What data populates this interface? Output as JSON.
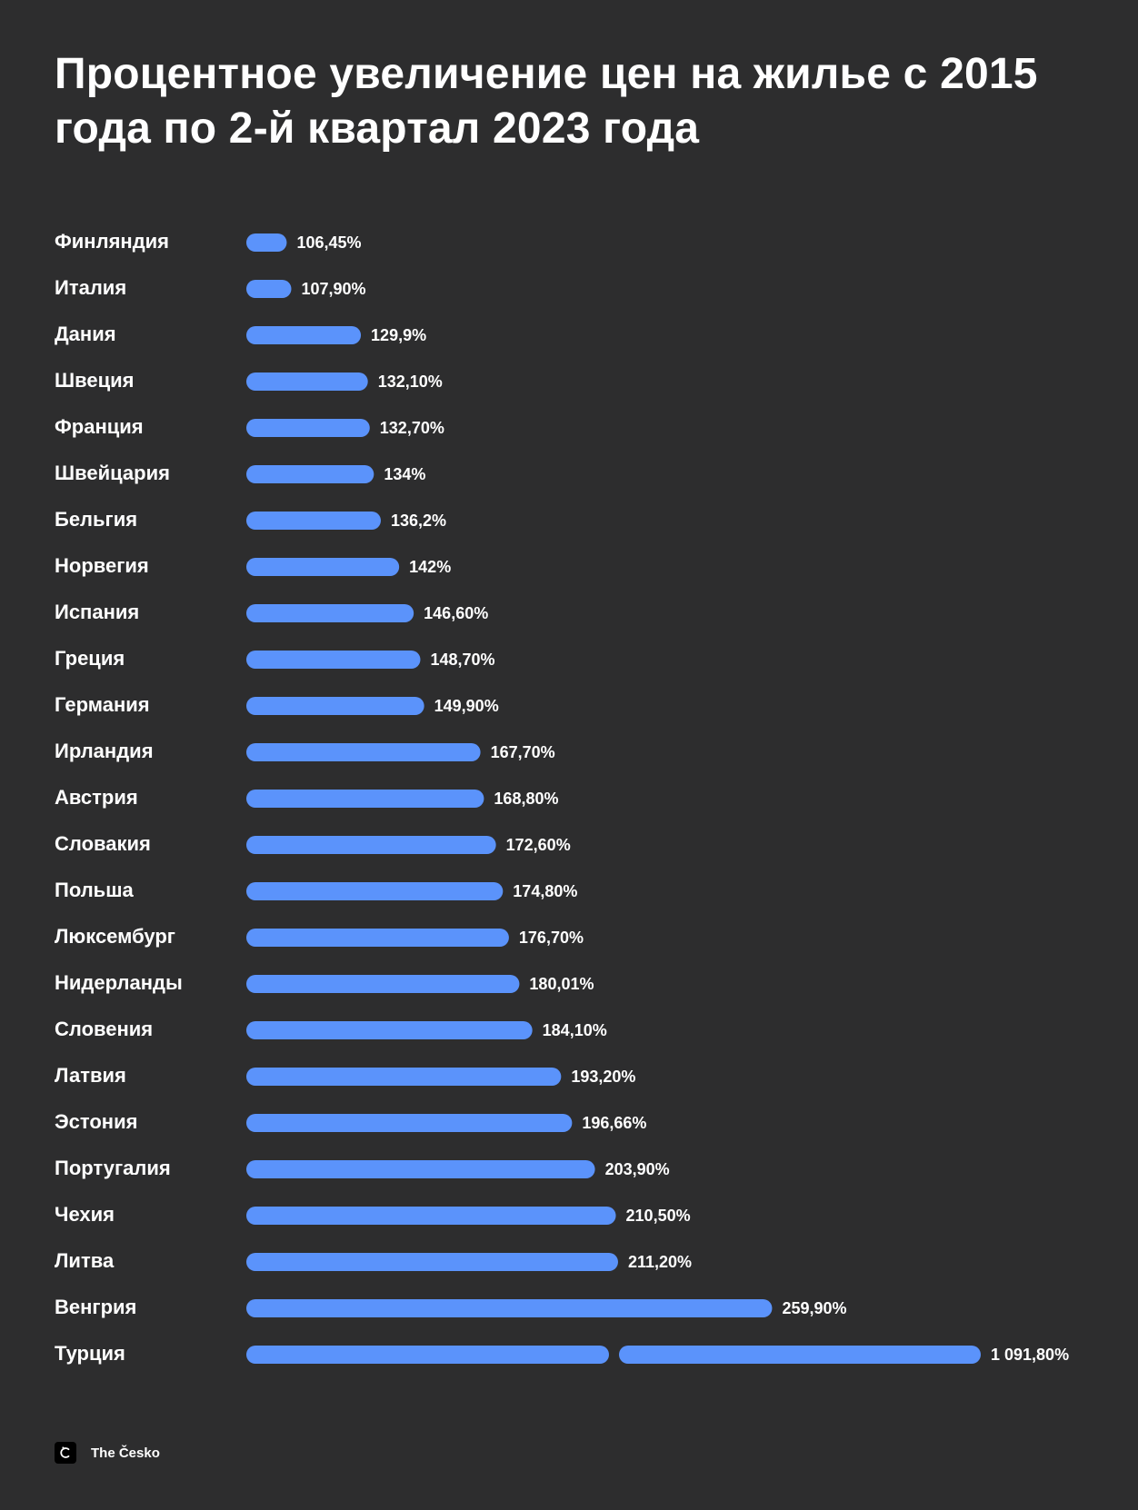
{
  "title": "Процентное увеличение цен на жилье с 2015 года по 2-й квартал 2023 года",
  "brand": {
    "name": "The Česko",
    "logo_icon": "c-logo-icon"
  },
  "colors": {
    "background": "#2d2d2e",
    "bar": "#5b93fb",
    "text": "#ffffff"
  },
  "chart_data": {
    "type": "bar",
    "orientation": "horizontal",
    "title": "Процентное увеличение цен на жилье с 2015 года по 2-й квартал 2023 года",
    "xlabel": "",
    "ylabel": "",
    "grid": false,
    "axis_break_on_last_bar": true,
    "categories": [
      "Финляндия",
      "Италия",
      "Дания",
      "Швеция",
      "Франция",
      "Швейцария",
      "Бельгия",
      "Норвегия",
      "Испания",
      "Греция",
      "Германия",
      "Ирландия",
      "Австрия",
      "Словакия",
      "Польша",
      "Люксембург",
      "Нидерланды",
      "Словения",
      "Латвия",
      "Эстония",
      "Португалия",
      "Чехия",
      "Литва",
      "Венгрия",
      "Турция"
    ],
    "values": [
      106.45,
      107.9,
      129.9,
      132.1,
      132.7,
      134,
      136.2,
      142,
      146.6,
      148.7,
      149.9,
      167.7,
      168.8,
      172.6,
      174.8,
      176.7,
      180.01,
      184.1,
      193.2,
      196.66,
      203.9,
      210.5,
      211.2,
      259.9,
      1091.8
    ],
    "value_labels": [
      "106,45%",
      "107,90%",
      "129,9%",
      "132,10%",
      "132,70%",
      "134%",
      "136,2%",
      "142%",
      "146,60%",
      "148,70%",
      "149,90%",
      "167,70%",
      "168,80%",
      "172,60%",
      "174,80%",
      "176,70%",
      "180,01%",
      "184,10%",
      "193,20%",
      "196,66%",
      "203,90%",
      "210,50%",
      "211,20%",
      "259,90%",
      "1 091,80%"
    ]
  }
}
